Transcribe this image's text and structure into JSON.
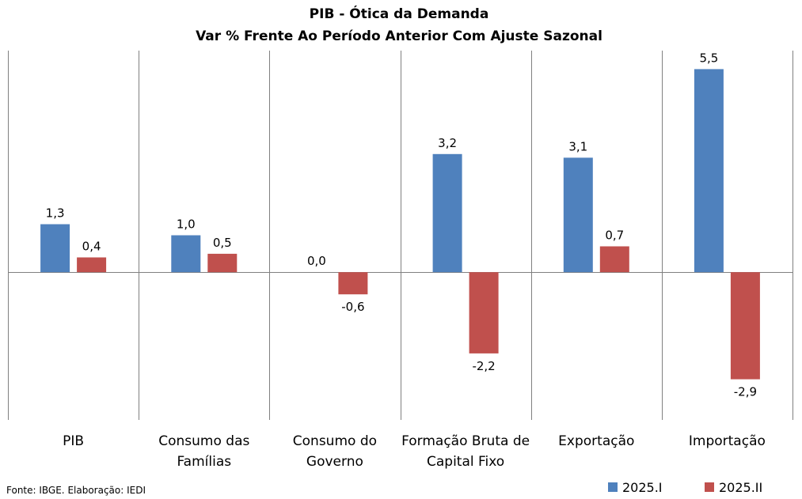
{
  "chart_data": {
    "type": "bar",
    "title": "PIB - Ótica da Demanda",
    "subtitle": "Var % Frente Ao Período Anterior Com Ajuste Sazonal",
    "categories": [
      [
        "PIB"
      ],
      [
        "Consumo das",
        "Famílias"
      ],
      [
        "Consumo do",
        "Governo"
      ],
      [
        "Formação Bruta de",
        "Capital Fixo"
      ],
      [
        "Exportação"
      ],
      [
        "Importação"
      ]
    ],
    "series": [
      {
        "name": "2025.I",
        "color": "#4f81bd",
        "values": [
          1.3,
          1.0,
          0.0,
          3.2,
          3.1,
          5.5
        ],
        "labels": [
          "1,3",
          "1,0",
          "0,0",
          "3,2",
          "3,1",
          "5,5"
        ]
      },
      {
        "name": "2025.II",
        "color": "#c0504d",
        "values": [
          0.4,
          0.5,
          -0.6,
          -2.2,
          0.7,
          -2.9
        ],
        "labels": [
          "0,4",
          "0,5",
          "-0,6",
          "-2,2",
          "0,7",
          "-2,9"
        ]
      }
    ],
    "ylim": [
      -4.0,
      6.0
    ],
    "grid": false,
    "legend_position": "bottom-right",
    "source": "Fonte: IBGE. Elaboração: IEDI"
  }
}
